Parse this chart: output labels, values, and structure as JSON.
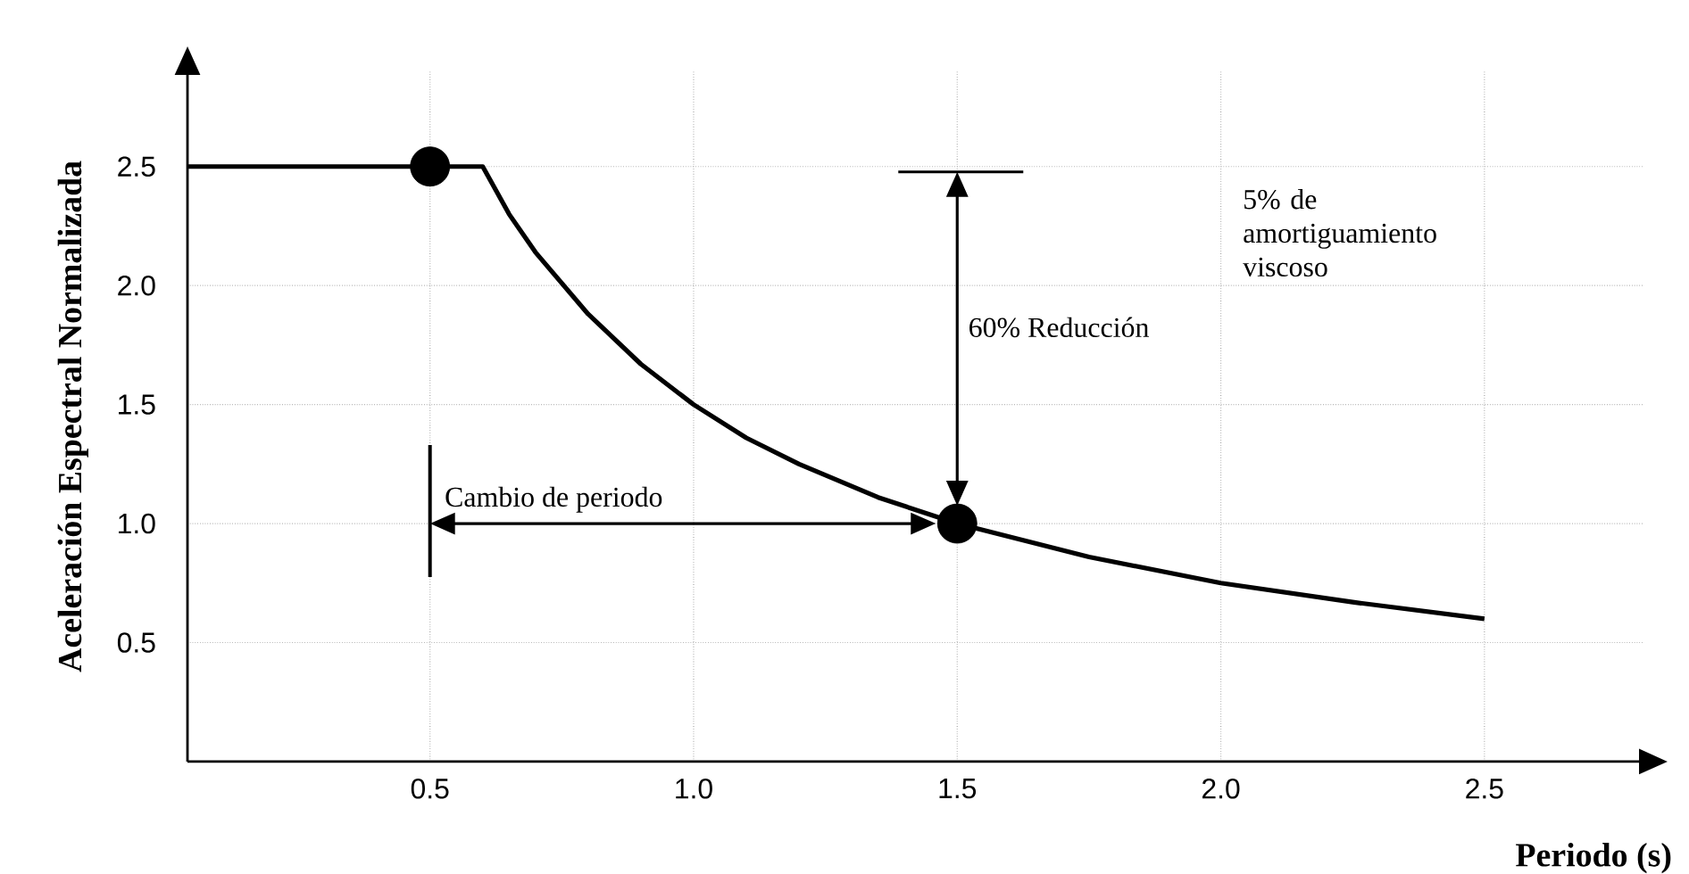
{
  "chart_data": {
    "type": "line",
    "xlabel": "Periodo (s)",
    "ylabel": "Aceleración Espectral Normalizada",
    "xlim": [
      0.04,
      2.8
    ],
    "ylim": [
      0,
      2.9
    ],
    "xticks": [
      {
        "value": 0.5,
        "label": "0.5"
      },
      {
        "value": 1,
        "label": "1.0"
      },
      {
        "value": 1.5,
        "label": "1.5"
      },
      {
        "value": 2,
        "label": "2.0"
      },
      {
        "value": 2.5,
        "label": "2.5"
      }
    ],
    "yticks": [
      {
        "value": 0.5,
        "label": "0.5"
      },
      {
        "value": 1,
        "label": "1.0"
      },
      {
        "value": 1.5,
        "label": "1.5"
      },
      {
        "value": 2,
        "label": "2.0"
      },
      {
        "value": 2.5,
        "label": "2.5"
      }
    ],
    "grid": true,
    "series": [
      {
        "color": "#000000",
        "marker": "none",
        "x": [
          0.04,
          0.6,
          0.65,
          0.7,
          0.8,
          0.9,
          1.0,
          1.1,
          1.2,
          1.35,
          1.5,
          1.75,
          2.0,
          2.25,
          2.5
        ],
        "values": [
          2.5,
          2.5,
          2.3,
          2.14,
          1.88,
          1.67,
          1.5,
          1.36,
          1.25,
          1.11,
          1.0,
          0.86,
          0.75,
          0.67,
          0.6
        ]
      },
      {
        "type": "scatter",
        "color": "#000000",
        "marker": "circle",
        "x": [
          0.5,
          1.5
        ],
        "values": [
          2.5,
          1.0
        ]
      }
    ],
    "annotations": [
      "Cambio de periodo",
      "60% Reducción",
      "5% de amortiguamiento viscoso"
    ]
  }
}
